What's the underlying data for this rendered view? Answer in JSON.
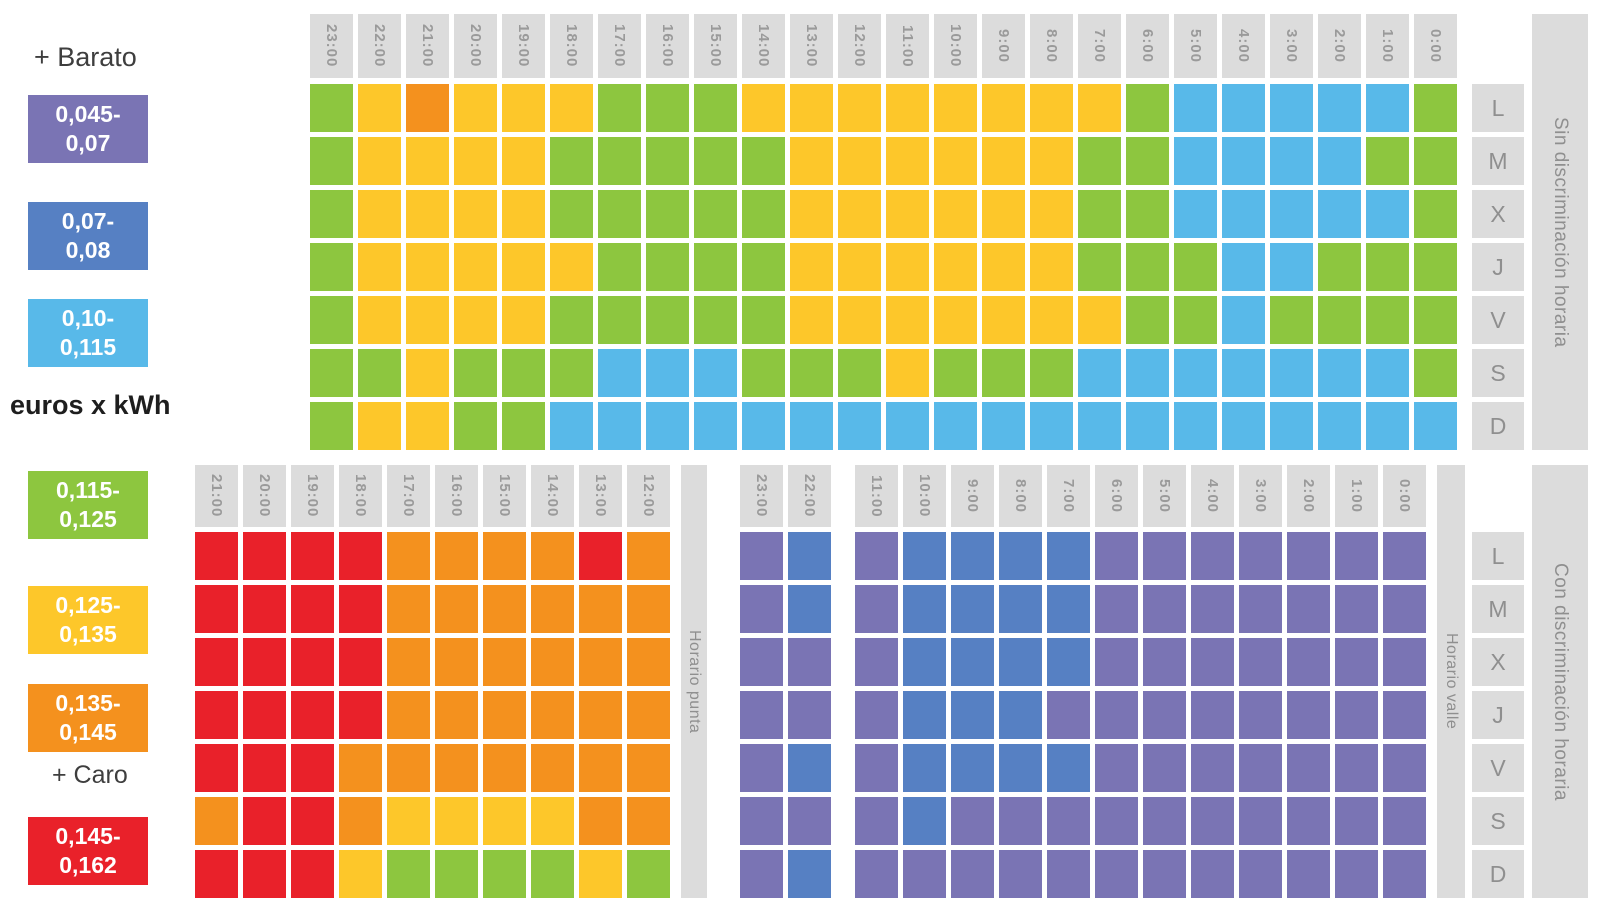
{
  "colors": {
    "P": "#7a74b4",
    "N": "#5680c3",
    "B": "#58b9e9",
    "G": "#8dc63f",
    "Y": "#fdc72a",
    "O": "#f4911e",
    "R": "#e9212a",
    "header_bg": "#dcdcdc",
    "header_text": "#9a9a9a"
  },
  "legend": {
    "cheaper_label": "+ Barato",
    "expensive_label": "+ Caro",
    "unit_label": "euros x kWh",
    "swatches": [
      {
        "line1": "0,045-",
        "line2": "0,07",
        "color_key": "P"
      },
      {
        "line1": "0,07-",
        "line2": "0,08",
        "color_key": "N"
      },
      {
        "line1": "0,10-",
        "line2": "0,115",
        "color_key": "B"
      },
      {
        "line1": "0,115-",
        "line2": "0,125",
        "color_key": "G"
      },
      {
        "line1": "0,125-",
        "line2": "0,135",
        "color_key": "Y"
      },
      {
        "line1": "0,135-",
        "line2": "0,145",
        "color_key": "O"
      },
      {
        "line1": "0,145-",
        "line2": "0,162",
        "color_key": "R"
      }
    ]
  },
  "days": [
    "L",
    "M",
    "X",
    "J",
    "V",
    "S",
    "D"
  ],
  "price_scale": {
    "unit": "euros x kWh",
    "ranges": {
      "P": "0,045-0,07",
      "N": "0,07-0,08",
      "B": "0,10-0,115",
      "G": "0,115-0,125",
      "Y": "0,125-0,135",
      "O": "0,135-0,145",
      "R": "0,145-0,162"
    }
  },
  "chart_data": [
    {
      "type": "heatmap",
      "title": "Sin discriminación horaria",
      "unit": "euros x kWh",
      "x_labels": [
        "23:00",
        "22:00",
        "21:00",
        "20:00",
        "19:00",
        "18:00",
        "17:00",
        "16:00",
        "15:00",
        "14:00",
        "13:00",
        "12:00",
        "11:00",
        "10:00",
        "9:00",
        "8:00",
        "7:00",
        "6:00",
        "5:00",
        "4:00",
        "3:00",
        "2:00",
        "1:00",
        "0:00"
      ],
      "y_labels": [
        "L",
        "M",
        "X",
        "J",
        "V",
        "S",
        "D"
      ],
      "values": [
        [
          "G",
          "Y",
          "O",
          "Y",
          "Y",
          "Y",
          "G",
          "G",
          "G",
          "Y",
          "Y",
          "Y",
          "Y",
          "Y",
          "Y",
          "Y",
          "Y",
          "G",
          "B",
          "B",
          "B",
          "B",
          "B",
          "G"
        ],
        [
          "G",
          "Y",
          "Y",
          "Y",
          "Y",
          "G",
          "G",
          "G",
          "G",
          "G",
          "Y",
          "Y",
          "Y",
          "Y",
          "Y",
          "Y",
          "G",
          "G",
          "B",
          "B",
          "B",
          "B",
          "G",
          "G"
        ],
        [
          "G",
          "Y",
          "Y",
          "Y",
          "Y",
          "G",
          "G",
          "G",
          "G",
          "G",
          "Y",
          "Y",
          "Y",
          "Y",
          "Y",
          "Y",
          "G",
          "G",
          "B",
          "B",
          "B",
          "B",
          "B",
          "G"
        ],
        [
          "G",
          "Y",
          "Y",
          "Y",
          "Y",
          "Y",
          "G",
          "G",
          "G",
          "G",
          "Y",
          "Y",
          "Y",
          "Y",
          "Y",
          "Y",
          "G",
          "G",
          "G",
          "B",
          "B",
          "G",
          "G",
          "G"
        ],
        [
          "G",
          "Y",
          "Y",
          "Y",
          "Y",
          "G",
          "G",
          "G",
          "G",
          "G",
          "Y",
          "Y",
          "Y",
          "Y",
          "Y",
          "Y",
          "Y",
          "G",
          "G",
          "B",
          "G",
          "G",
          "G",
          "G"
        ],
        [
          "G",
          "G",
          "Y",
          "G",
          "G",
          "G",
          "B",
          "B",
          "B",
          "G",
          "G",
          "G",
          "Y",
          "G",
          "G",
          "G",
          "B",
          "B",
          "B",
          "B",
          "B",
          "B",
          "B",
          "G"
        ],
        [
          "G",
          "Y",
          "Y",
          "G",
          "G",
          "B",
          "B",
          "B",
          "B",
          "B",
          "B",
          "B",
          "B",
          "B",
          "B",
          "B",
          "B",
          "B",
          "B",
          "B",
          "B",
          "B",
          "B",
          "B"
        ]
      ]
    },
    {
      "type": "heatmap",
      "title": "Horario punta",
      "group_title": "Con discriminación horaria",
      "side_label": "Horario punta",
      "unit": "euros x kWh",
      "x_labels": [
        "21:00",
        "20:00",
        "19:00",
        "18:00",
        "17:00",
        "16:00",
        "15:00",
        "14:00",
        "13:00",
        "12:00"
      ],
      "y_labels": [
        "L",
        "M",
        "X",
        "J",
        "V",
        "S",
        "D"
      ],
      "values": [
        [
          "R",
          "R",
          "R",
          "R",
          "O",
          "O",
          "O",
          "O",
          "R",
          "O"
        ],
        [
          "R",
          "R",
          "R",
          "R",
          "O",
          "O",
          "O",
          "O",
          "O",
          "O"
        ],
        [
          "R",
          "R",
          "R",
          "R",
          "O",
          "O",
          "O",
          "O",
          "O",
          "O"
        ],
        [
          "R",
          "R",
          "R",
          "R",
          "O",
          "O",
          "O",
          "O",
          "O",
          "O"
        ],
        [
          "R",
          "R",
          "R",
          "O",
          "O",
          "O",
          "O",
          "O",
          "O",
          "O"
        ],
        [
          "O",
          "R",
          "R",
          "O",
          "Y",
          "Y",
          "Y",
          "Y",
          "O",
          "O"
        ],
        [
          "R",
          "R",
          "R",
          "Y",
          "G",
          "G",
          "G",
          "G",
          "Y",
          "G"
        ]
      ]
    },
    {
      "type": "heatmap",
      "title": "Horario valle",
      "group_title": "Con discriminación horaria",
      "side_label": "Horario valle",
      "unit": "euros x kWh",
      "gap_after_index": 1,
      "x_labels": [
        "23:00",
        "22:00",
        "11:00",
        "10:00",
        "9:00",
        "8:00",
        "7:00",
        "6:00",
        "5:00",
        "4:00",
        "3:00",
        "2:00",
        "1:00",
        "0:00"
      ],
      "y_labels": [
        "L",
        "M",
        "X",
        "J",
        "V",
        "S",
        "D"
      ],
      "values": [
        [
          "P",
          "N",
          "P",
          "N",
          "N",
          "N",
          "N",
          "P",
          "P",
          "P",
          "P",
          "P",
          "P",
          "P"
        ],
        [
          "P",
          "N",
          "P",
          "N",
          "N",
          "N",
          "N",
          "P",
          "P",
          "P",
          "P",
          "P",
          "P",
          "P"
        ],
        [
          "P",
          "P",
          "P",
          "N",
          "N",
          "N",
          "N",
          "P",
          "P",
          "P",
          "P",
          "P",
          "P",
          "P"
        ],
        [
          "P",
          "P",
          "P",
          "N",
          "N",
          "N",
          "P",
          "P",
          "P",
          "P",
          "P",
          "P",
          "P",
          "P"
        ],
        [
          "P",
          "N",
          "P",
          "N",
          "N",
          "N",
          "N",
          "P",
          "P",
          "P",
          "P",
          "P",
          "P",
          "P"
        ],
        [
          "P",
          "P",
          "P",
          "N",
          "P",
          "P",
          "P",
          "P",
          "P",
          "P",
          "P",
          "P",
          "P",
          "P"
        ],
        [
          "P",
          "N",
          "P",
          "P",
          "P",
          "P",
          "P",
          "P",
          "P",
          "P",
          "P",
          "P",
          "P",
          "P"
        ]
      ]
    }
  ]
}
